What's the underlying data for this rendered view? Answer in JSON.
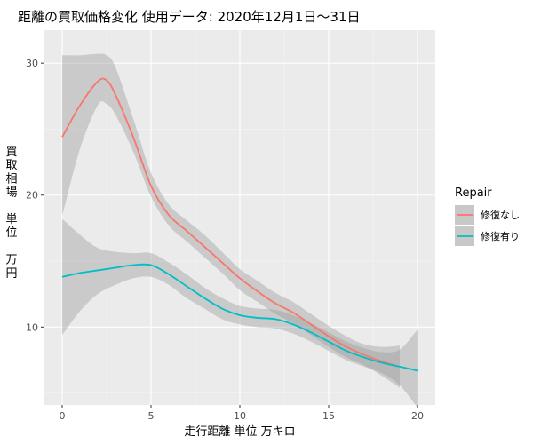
{
  "chart_data": {
    "type": "line",
    "title": "距離の買取価格変化 使用データ: 2020年12月1日～31日",
    "xlabel": "走行距離 単位 万キロ",
    "ylabel_lines": [
      "買",
      "取",
      "相",
      "場",
      "",
      "単",
      "位",
      "",
      "万",
      "円"
    ],
    "xlim": [
      -1,
      21
    ],
    "ylim": [
      4.1,
      32.5
    ],
    "x_ticks": [
      0,
      5,
      10,
      15,
      20
    ],
    "y_ticks": [
      10,
      20,
      30
    ],
    "grid": true,
    "legend": {
      "title": "Repair",
      "placement": "right"
    },
    "series": [
      {
        "name": "修復なし",
        "color": "#F8766D",
        "x": [
          0,
          1,
          2,
          2.5,
          3,
          4,
          5,
          6,
          7,
          8,
          9,
          10,
          11,
          12,
          13,
          14,
          15,
          16,
          17,
          18,
          19
        ],
        "y": [
          24.4,
          26.8,
          28.6,
          28.7,
          27.6,
          24.4,
          20.7,
          18.5,
          17.3,
          16.1,
          14.9,
          13.7,
          12.7,
          11.8,
          11.1,
          10.2,
          9.3,
          8.5,
          7.9,
          7.4,
          7.0
        ],
        "ci_upper": [
          30.6,
          30.6,
          30.7,
          30.6,
          29.7,
          25.8,
          21.7,
          19.3,
          18.1,
          17.0,
          15.7,
          14.4,
          13.5,
          12.6,
          11.9,
          11.0,
          10.1,
          9.3,
          8.7,
          8.5,
          8.6
        ],
        "ci_lower": [
          18.4,
          23.5,
          26.8,
          26.9,
          26.1,
          23.3,
          19.9,
          17.7,
          16.5,
          15.3,
          14.1,
          12.8,
          11.9,
          11.0,
          10.3,
          9.4,
          8.5,
          7.7,
          7.1,
          6.3,
          5.4
        ]
      },
      {
        "name": "修復有り",
        "color": "#00BFC4",
        "x": [
          0,
          1,
          2,
          3,
          4,
          5,
          6,
          7,
          8,
          9,
          10,
          11,
          12,
          13,
          14,
          15,
          16,
          17,
          18,
          19,
          20
        ],
        "y": [
          13.8,
          14.1,
          14.3,
          14.5,
          14.7,
          14.7,
          14.0,
          13.1,
          12.2,
          11.4,
          10.9,
          10.7,
          10.6,
          10.2,
          9.6,
          8.9,
          8.2,
          7.7,
          7.3,
          7.0,
          6.7
        ],
        "ci_upper": [
          18.2,
          17.0,
          16.0,
          15.7,
          15.6,
          15.6,
          14.9,
          14.0,
          13.0,
          12.2,
          11.6,
          11.4,
          11.3,
          10.9,
          10.3,
          9.6,
          8.9,
          8.4,
          8.1,
          8.3,
          9.8
        ],
        "ci_lower": [
          9.4,
          11.2,
          12.5,
          13.2,
          13.7,
          13.8,
          13.2,
          12.2,
          11.4,
          10.6,
          10.2,
          10.0,
          9.9,
          9.5,
          8.9,
          8.2,
          7.5,
          7.0,
          6.5,
          5.6,
          3.9
        ]
      }
    ]
  }
}
